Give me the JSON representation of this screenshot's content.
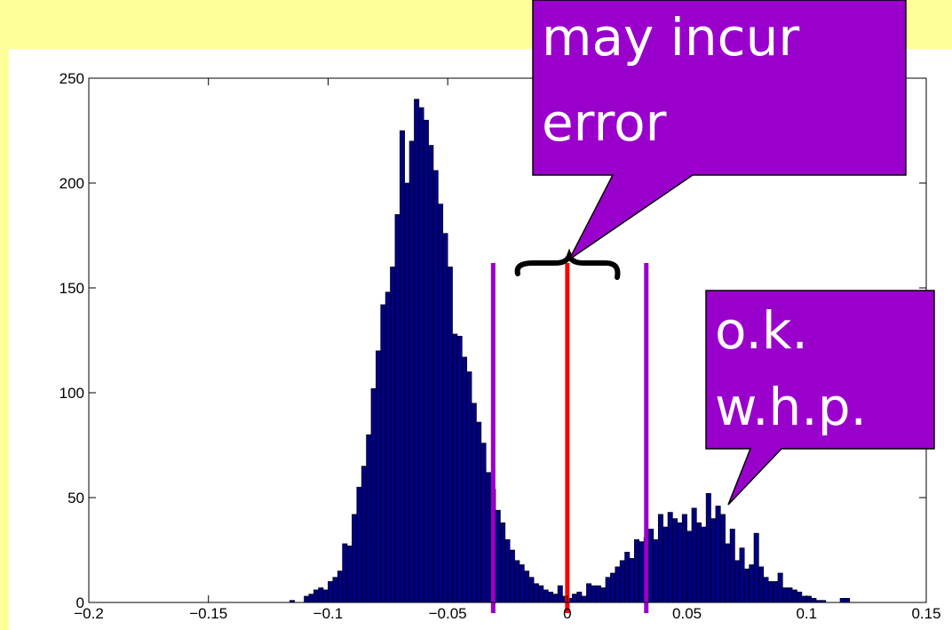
{
  "chart_data": {
    "type": "histogram",
    "bins": [
      -0.12,
      -0.118,
      -0.116,
      -0.114,
      -0.112,
      -0.11,
      -0.108,
      -0.106,
      -0.104,
      -0.102,
      -0.1,
      -0.098,
      -0.096,
      -0.094,
      -0.092,
      -0.09,
      -0.088,
      -0.086,
      -0.084,
      -0.082,
      -0.08,
      -0.078,
      -0.076,
      -0.074,
      -0.072,
      -0.07,
      -0.068,
      -0.066,
      -0.064,
      -0.062,
      -0.06,
      -0.058,
      -0.056,
      -0.054,
      -0.052,
      -0.05,
      -0.048,
      -0.046,
      -0.044,
      -0.042,
      -0.04,
      -0.038,
      -0.036,
      -0.034,
      -0.032,
      -0.03,
      -0.028,
      -0.026,
      -0.024,
      -0.022,
      -0.02,
      -0.018,
      -0.016,
      -0.014,
      -0.012,
      -0.01,
      -0.008,
      -0.006,
      -0.004,
      -0.002,
      0.0,
      0.002,
      0.004,
      0.006,
      0.008,
      0.01,
      0.012,
      0.014,
      0.016,
      0.018,
      0.02,
      0.022,
      0.024,
      0.026,
      0.028,
      0.03,
      0.032,
      0.034,
      0.036,
      0.038,
      0.04,
      0.042,
      0.044,
      0.046,
      0.048,
      0.05,
      0.052,
      0.054,
      0.056,
      0.058,
      0.06,
      0.062,
      0.064,
      0.066,
      0.068,
      0.07,
      0.072,
      0.074,
      0.076,
      0.078,
      0.08,
      0.082,
      0.084,
      0.086,
      0.088,
      0.09,
      0.092,
      0.094,
      0.096,
      0.098,
      0.1,
      0.102,
      0.104,
      0.106,
      0.108,
      0.11,
      0.112,
      0.114,
      0.116,
      0.118,
      0.12,
      0.122
    ],
    "values": [
      0,
      0,
      1,
      0,
      0,
      3,
      4,
      6,
      7,
      6,
      10,
      12,
      15,
      28,
      27,
      42,
      55,
      65,
      80,
      102,
      120,
      142,
      148,
      160,
      185,
      225,
      200,
      220,
      240,
      236,
      230,
      218,
      206,
      190,
      176,
      160,
      128,
      127,
      117,
      110,
      95,
      86,
      76,
      62,
      54,
      44,
      38,
      30,
      25,
      20,
      18,
      15,
      12,
      9,
      8,
      6,
      5,
      4,
      8,
      3,
      2,
      4,
      5,
      3,
      9,
      8,
      8,
      7,
      12,
      14,
      17,
      20,
      24,
      21,
      30,
      29,
      31,
      35,
      30,
      42,
      36,
      43,
      40,
      38,
      42,
      34,
      45,
      38,
      36,
      52,
      40,
      46,
      42,
      28,
      35,
      20,
      26,
      16,
      18,
      33,
      17,
      12,
      10,
      10,
      14,
      7,
      7,
      6,
      5,
      3,
      3,
      2,
      1,
      1,
      0,
      0,
      0,
      2,
      2,
      0,
      0
    ],
    "color": "#000080",
    "xlim": [
      -0.2,
      0.15
    ],
    "xticks": [
      {
        "value": -0.2,
        "label": "−0.2"
      },
      {
        "value": -0.15,
        "label": "−0.15"
      },
      {
        "value": -0.1,
        "label": "−0.1"
      },
      {
        "value": -0.05,
        "label": "−0.05"
      },
      0,
      0.05,
      0.1,
      0.15
    ],
    "ylim": [
      0,
      250
    ],
    "yticks": [
      0,
      50,
      100,
      150,
      200,
      250
    ],
    "vlines": [
      {
        "x": -0.031,
        "color": "#9a00cc"
      },
      {
        "x": 0,
        "color": "#ff0000"
      },
      {
        "x": 0.033,
        "color": "#9a00cc"
      }
    ],
    "annotations": [
      [
        "may incur",
        "error"
      ],
      [
        "o.k.",
        "w.h.p."
      ]
    ]
  }
}
